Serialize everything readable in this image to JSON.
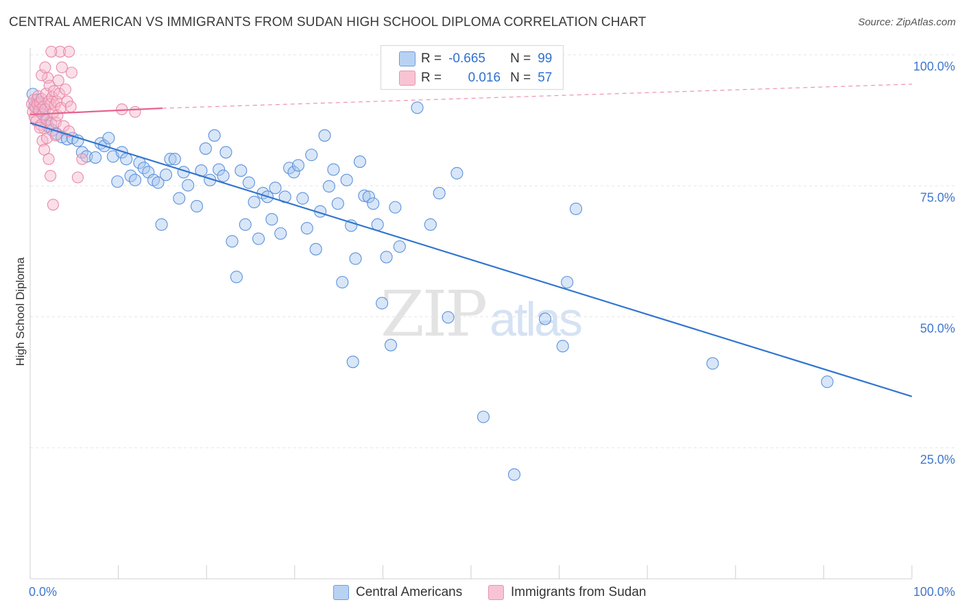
{
  "header": {
    "title": "CENTRAL AMERICAN VS IMMIGRANTS FROM SUDAN HIGH SCHOOL DIPLOMA CORRELATION CHART",
    "source": "Source: ZipAtlas.com"
  },
  "watermark": {
    "zip": "ZIP",
    "atlas": "atlas"
  },
  "legend": {
    "series1": {
      "r_label": "R =",
      "r_value": "-0.665",
      "n_label": "N =",
      "n_value": "99"
    },
    "series2": {
      "r_label": "R =",
      "r_value": "0.016",
      "n_label": "N =",
      "n_value": "57"
    }
  },
  "colors": {
    "blue_fill": "#a9c8f0",
    "blue_stroke": "#5b91db",
    "blue_line": "#2f74d0",
    "pink_fill": "#f6b8cb",
    "pink_stroke": "#e889a8",
    "pink_line": "#e5638d",
    "axis_label": "#3f77cc",
    "grid": "#e6e6e6"
  },
  "chart_data": {
    "type": "scatter",
    "title": "CENTRAL AMERICAN VS IMMIGRANTS FROM SUDAN HIGH SCHOOL DIPLOMA CORRELATION CHART",
    "xlabel": "",
    "ylabel": "High School Diploma",
    "xlim": [
      0,
      100
    ],
    "ylim": [
      0,
      102
    ],
    "x_tick_labels": [
      "0.0%",
      "100.0%"
    ],
    "y_ticks": [
      25,
      50,
      75,
      100
    ],
    "y_tick_labels": [
      "25.0%",
      "50.0%",
      "75.0%",
      "100.0%"
    ],
    "grid": true,
    "series": [
      {
        "name": "Central Americans",
        "color": "blue",
        "trend": {
          "x": [
            0,
            100
          ],
          "y": [
            87.0,
            34.8
          ]
        },
        "points": [
          [
            0.3,
            92.5
          ],
          [
            0.5,
            90.2
          ],
          [
            0.8,
            91.4
          ],
          [
            1.0,
            89.3
          ],
          [
            1.2,
            90.5
          ],
          [
            1.5,
            88.6
          ],
          [
            1.8,
            87.6
          ],
          [
            2.0,
            86.4
          ],
          [
            2.5,
            85.6
          ],
          [
            3.0,
            84.9
          ],
          [
            3.6,
            84.3
          ],
          [
            4.2,
            83.9
          ],
          [
            4.8,
            84.1
          ],
          [
            5.4,
            83.6
          ],
          [
            5.9,
            81.4
          ],
          [
            6.4,
            80.6
          ],
          [
            7.4,
            80.4
          ],
          [
            8.0,
            83.1
          ],
          [
            8.4,
            82.6
          ],
          [
            8.9,
            84.1
          ],
          [
            9.4,
            80.6
          ],
          [
            9.9,
            75.8
          ],
          [
            10.4,
            81.4
          ],
          [
            10.9,
            80.1
          ],
          [
            11.4,
            76.9
          ],
          [
            11.9,
            76.1
          ],
          [
            12.4,
            79.4
          ],
          [
            12.9,
            78.4
          ],
          [
            13.4,
            77.6
          ],
          [
            14.0,
            76.1
          ],
          [
            14.5,
            75.6
          ],
          [
            14.9,
            67.6
          ],
          [
            15.4,
            77.1
          ],
          [
            15.9,
            80.1
          ],
          [
            16.4,
            80.1
          ],
          [
            16.9,
            72.6
          ],
          [
            17.4,
            77.6
          ],
          [
            17.9,
            75.1
          ],
          [
            18.9,
            71.1
          ],
          [
            19.4,
            77.9
          ],
          [
            19.9,
            82.1
          ],
          [
            20.4,
            76.1
          ],
          [
            20.9,
            84.6
          ],
          [
            21.4,
            78.1
          ],
          [
            21.9,
            76.9
          ],
          [
            22.2,
            81.4
          ],
          [
            22.9,
            64.4
          ],
          [
            23.4,
            57.6
          ],
          [
            23.9,
            77.9
          ],
          [
            24.4,
            67.6
          ],
          [
            24.8,
            75.6
          ],
          [
            25.4,
            71.9
          ],
          [
            25.9,
            64.9
          ],
          [
            26.4,
            73.6
          ],
          [
            26.9,
            72.9
          ],
          [
            27.4,
            68.6
          ],
          [
            27.8,
            74.6
          ],
          [
            28.4,
            65.9
          ],
          [
            28.9,
            72.9
          ],
          [
            29.4,
            78.4
          ],
          [
            29.9,
            77.6
          ],
          [
            30.4,
            78.9
          ],
          [
            30.9,
            72.6
          ],
          [
            31.4,
            66.9
          ],
          [
            31.9,
            80.9
          ],
          [
            32.4,
            62.9
          ],
          [
            32.9,
            70.1
          ],
          [
            33.4,
            84.6
          ],
          [
            33.9,
            74.9
          ],
          [
            34.4,
            78.1
          ],
          [
            34.9,
            71.6
          ],
          [
            35.4,
            56.6
          ],
          [
            35.9,
            76.1
          ],
          [
            36.4,
            67.4
          ],
          [
            36.9,
            61.1
          ],
          [
            37.4,
            79.6
          ],
          [
            37.9,
            73.1
          ],
          [
            38.4,
            72.9
          ],
          [
            38.9,
            71.6
          ],
          [
            39.4,
            67.6
          ],
          [
            39.9,
            52.6
          ],
          [
            40.4,
            61.4
          ],
          [
            40.9,
            44.6
          ],
          [
            41.4,
            70.9
          ],
          [
            41.9,
            63.4
          ],
          [
            43.9,
            89.9
          ],
          [
            45.4,
            67.6
          ],
          [
            46.4,
            73.6
          ],
          [
            47.4,
            49.9
          ],
          [
            48.4,
            77.4
          ],
          [
            51.4,
            30.9
          ],
          [
            54.9,
            19.9
          ],
          [
            58.4,
            49.6
          ],
          [
            60.4,
            44.4
          ],
          [
            60.9,
            56.6
          ],
          [
            61.9,
            70.6
          ],
          [
            77.4,
            41.1
          ],
          [
            90.4,
            37.6
          ],
          [
            36.6,
            41.4
          ]
        ]
      },
      {
        "name": "Immigrants from Sudan",
        "color": "pink",
        "trend_solid": {
          "x": [
            0,
            15
          ],
          "y": [
            88.6,
            89.8
          ]
        },
        "trend_dashed": {
          "x": [
            15,
            100
          ],
          "y": [
            89.8,
            94.4
          ]
        },
        "points": [
          [
            0.2,
            90.6
          ],
          [
            0.3,
            89.1
          ],
          [
            0.4,
            91.4
          ],
          [
            0.5,
            88.1
          ],
          [
            0.6,
            89.9
          ],
          [
            0.7,
            87.4
          ],
          [
            0.8,
            90.6
          ],
          [
            0.9,
            92.1
          ],
          [
            1.0,
            89.4
          ],
          [
            1.1,
            90.9
          ],
          [
            1.2,
            86.6
          ],
          [
            1.3,
            91.6
          ],
          [
            1.4,
            88.6
          ],
          [
            1.5,
            90.1
          ],
          [
            1.6,
            85.9
          ],
          [
            1.7,
            89.6
          ],
          [
            1.8,
            92.6
          ],
          [
            1.9,
            87.6
          ],
          [
            2.0,
            95.6
          ],
          [
            2.1,
            91.1
          ],
          [
            2.2,
            94.1
          ],
          [
            2.3,
            90.6
          ],
          [
            2.4,
            86.9
          ],
          [
            2.5,
            91.9
          ],
          [
            2.6,
            88.9
          ],
          [
            2.7,
            93.1
          ],
          [
            2.8,
            90.4
          ],
          [
            2.9,
            87.1
          ],
          [
            3.0,
            91.1
          ],
          [
            3.1,
            88.4
          ],
          [
            3.2,
            95.1
          ],
          [
            3.3,
            92.6
          ],
          [
            3.4,
            100.6
          ],
          [
            3.5,
            89.9
          ],
          [
            3.6,
            97.6
          ],
          [
            3.8,
            86.4
          ],
          [
            4.0,
            93.4
          ],
          [
            4.2,
            91.1
          ],
          [
            4.4,
            85.4
          ],
          [
            4.6,
            90.1
          ],
          [
            1.1,
            86.1
          ],
          [
            1.4,
            83.6
          ],
          [
            1.6,
            81.9
          ],
          [
            1.9,
            84.1
          ],
          [
            2.1,
            80.1
          ],
          [
            2.3,
            76.9
          ],
          [
            2.6,
            71.4
          ],
          [
            2.9,
            84.6
          ],
          [
            4.4,
            100.6
          ],
          [
            4.7,
            96.6
          ],
          [
            5.4,
            76.6
          ],
          [
            5.9,
            80.1
          ],
          [
            10.4,
            89.6
          ],
          [
            11.9,
            89.1
          ],
          [
            1.3,
            96.1
          ],
          [
            1.7,
            97.6
          ],
          [
            2.4,
            100.6
          ]
        ]
      }
    ]
  },
  "bottom_legend": {
    "item1": "Central Americans",
    "item2": "Immigrants from Sudan"
  },
  "axis_text": {
    "y_axis_label": "High School Diploma",
    "x_min_label": "0.0%",
    "x_max_label": "100.0%"
  }
}
